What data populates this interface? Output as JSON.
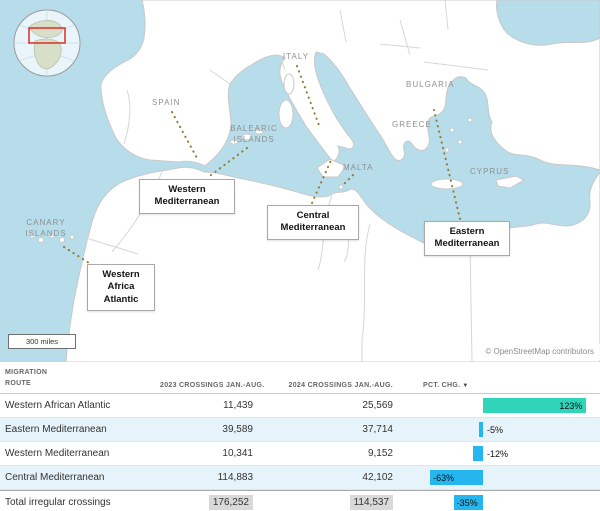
{
  "map": {
    "country_labels": [
      {
        "id": "spain",
        "text": "SPAIN"
      },
      {
        "id": "italy",
        "text": "ITALY"
      },
      {
        "id": "bulgaria",
        "text": "BULGARIA"
      },
      {
        "id": "greece",
        "text": "GREECE"
      },
      {
        "id": "malta",
        "text": "MALTA"
      },
      {
        "id": "cyprus",
        "text": "CYPRUS"
      },
      {
        "id": "balearic-islands",
        "text": "BALEARIC\nISLANDS"
      },
      {
        "id": "canary-islands",
        "text": "CANARY\nISLANDS"
      }
    ],
    "route_labels": [
      {
        "id": "western-mediterranean",
        "text": "Western\nMediterranean"
      },
      {
        "id": "central-mediterranean",
        "text": "Central\nMediterranean"
      },
      {
        "id": "eastern-mediterranean",
        "text": "Eastern\nMediterranean"
      },
      {
        "id": "western-africa-atlantic",
        "text": "Western\nAfrica\nAtlantic"
      }
    ],
    "scale_label": "300 miles",
    "attribution": "© OpenStreetMap contributors",
    "colors": {
      "sea": "#b7dcea",
      "land": "#ffffff",
      "border": "#c9c9c9",
      "route_line": "#8f7d36",
      "inset_highlight": "#e0392f"
    }
  },
  "table": {
    "headers": [
      {
        "label": "MIGRATION\nROUTE"
      },
      {
        "label": "2023 CROSSINGS JAN.-AUG."
      },
      {
        "label": "2024 CROSSINGS JAN.-AUG."
      },
      {
        "label": "PCT. CHG.",
        "sort_icon": "▼"
      }
    ]
  },
  "chart_data": {
    "type": "table",
    "columns": [
      "Migration route",
      "2023 crossings Jan.-Aug.",
      "2024 crossings Jan.-Aug.",
      "Pct. chg."
    ],
    "rows": [
      {
        "route": "Western African Atlantic",
        "crossings_2023": "11,439",
        "crossings_2024": "25,569",
        "pct_change": 123,
        "pct_label": "123%"
      },
      {
        "route": "Eastern Mediterranean",
        "crossings_2023": "39,589",
        "crossings_2024": "37,714",
        "pct_change": -5,
        "pct_label": "-5%"
      },
      {
        "route": "Western Mediterranean",
        "crossings_2023": "10,341",
        "crossings_2024": "9,152",
        "pct_change": -12,
        "pct_label": "-12%"
      },
      {
        "route": "Central Mediterranean",
        "crossings_2023": "114,883",
        "crossings_2024": "42,102",
        "pct_change": -63,
        "pct_label": "-63%"
      },
      {
        "route": "Total irregular crossings",
        "crossings_2023": "176,252",
        "crossings_2024": "114,537",
        "pct_change": -35,
        "pct_label": "-35%",
        "is_total": true
      }
    ],
    "bar_colors": {
      "positive": "#2fd4b9",
      "negative": "#25b6f0"
    },
    "bar_axis": {
      "unit": "percent",
      "baseline": 0
    }
  }
}
